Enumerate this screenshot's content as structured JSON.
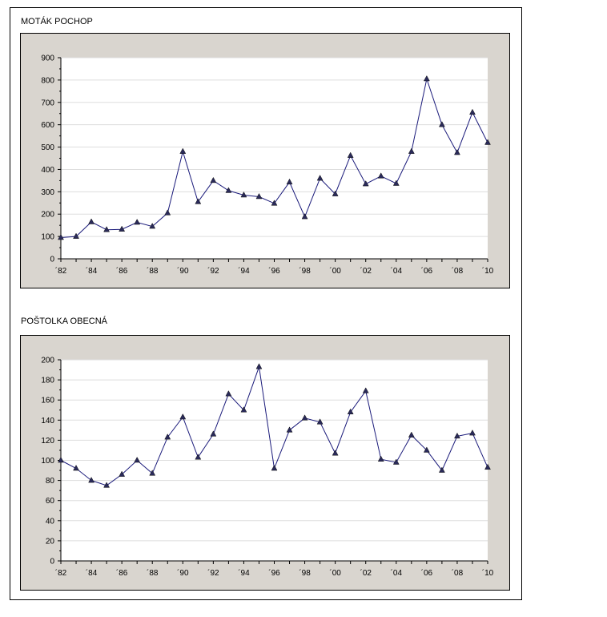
{
  "colors": {
    "line": "#1a1a7a",
    "marker": "#2a2a5a",
    "panel": "#d9d5cf",
    "plot": "#ffffff",
    "grid": "#dddddd"
  },
  "chart_data": [
    {
      "type": "line",
      "title": "MOTÁK POCHOP",
      "x": [
        1982,
        1983,
        1984,
        1985,
        1986,
        1987,
        1988,
        1989,
        1990,
        1991,
        1992,
        1993,
        1994,
        1995,
        1996,
        1997,
        1998,
        1999,
        2000,
        2001,
        2002,
        2003,
        2004,
        2005,
        2006,
        2007,
        2008,
        2009,
        2010
      ],
      "values": [
        95,
        100,
        165,
        130,
        132,
        163,
        145,
        205,
        480,
        255,
        350,
        305,
        285,
        278,
        248,
        343,
        188,
        360,
        290,
        462,
        335,
        370,
        337,
        480,
        805,
        600,
        475,
        655,
        520
      ],
      "ylim": [
        0,
        900
      ],
      "yticks": [
        "0",
        "100",
        "200",
        "300",
        "400",
        "500",
        "600",
        "700",
        "800",
        "900"
      ],
      "xticks": [
        "´82",
        "´84",
        "´86",
        "´88",
        "´90",
        "´92",
        "´94",
        "´96",
        "´98",
        "´00",
        "´02",
        "´04",
        "´06",
        "´08",
        "´10"
      ],
      "grid": true
    },
    {
      "type": "line",
      "title": "POŠTOLKA OBECNÁ",
      "x": [
        1982,
        1983,
        1984,
        1985,
        1986,
        1987,
        1988,
        1989,
        1990,
        1991,
        1992,
        1993,
        1994,
        1995,
        1996,
        1997,
        1998,
        1999,
        2000,
        2001,
        2002,
        2003,
        2004,
        2005,
        2006,
        2007,
        2008,
        2009,
        2010
      ],
      "values": [
        100,
        92,
        80,
        75,
        86,
        100,
        87,
        123,
        143,
        103,
        126,
        166,
        150,
        193,
        92,
        130,
        142,
        138,
        107,
        148,
        169,
        101,
        98,
        125,
        110,
        90,
        124,
        127,
        93
      ],
      "ylim": [
        0,
        200
      ],
      "yticks": [
        "0",
        "20",
        "40",
        "60",
        "80",
        "100",
        "120",
        "140",
        "160",
        "180",
        "200"
      ],
      "xticks": [
        "´82",
        "´84",
        "´86",
        "´88",
        "´90",
        "´92",
        "´94",
        "´96",
        "´98",
        "´00",
        "´02",
        "´04",
        "´06",
        "´08",
        "´10"
      ],
      "grid": true
    }
  ]
}
